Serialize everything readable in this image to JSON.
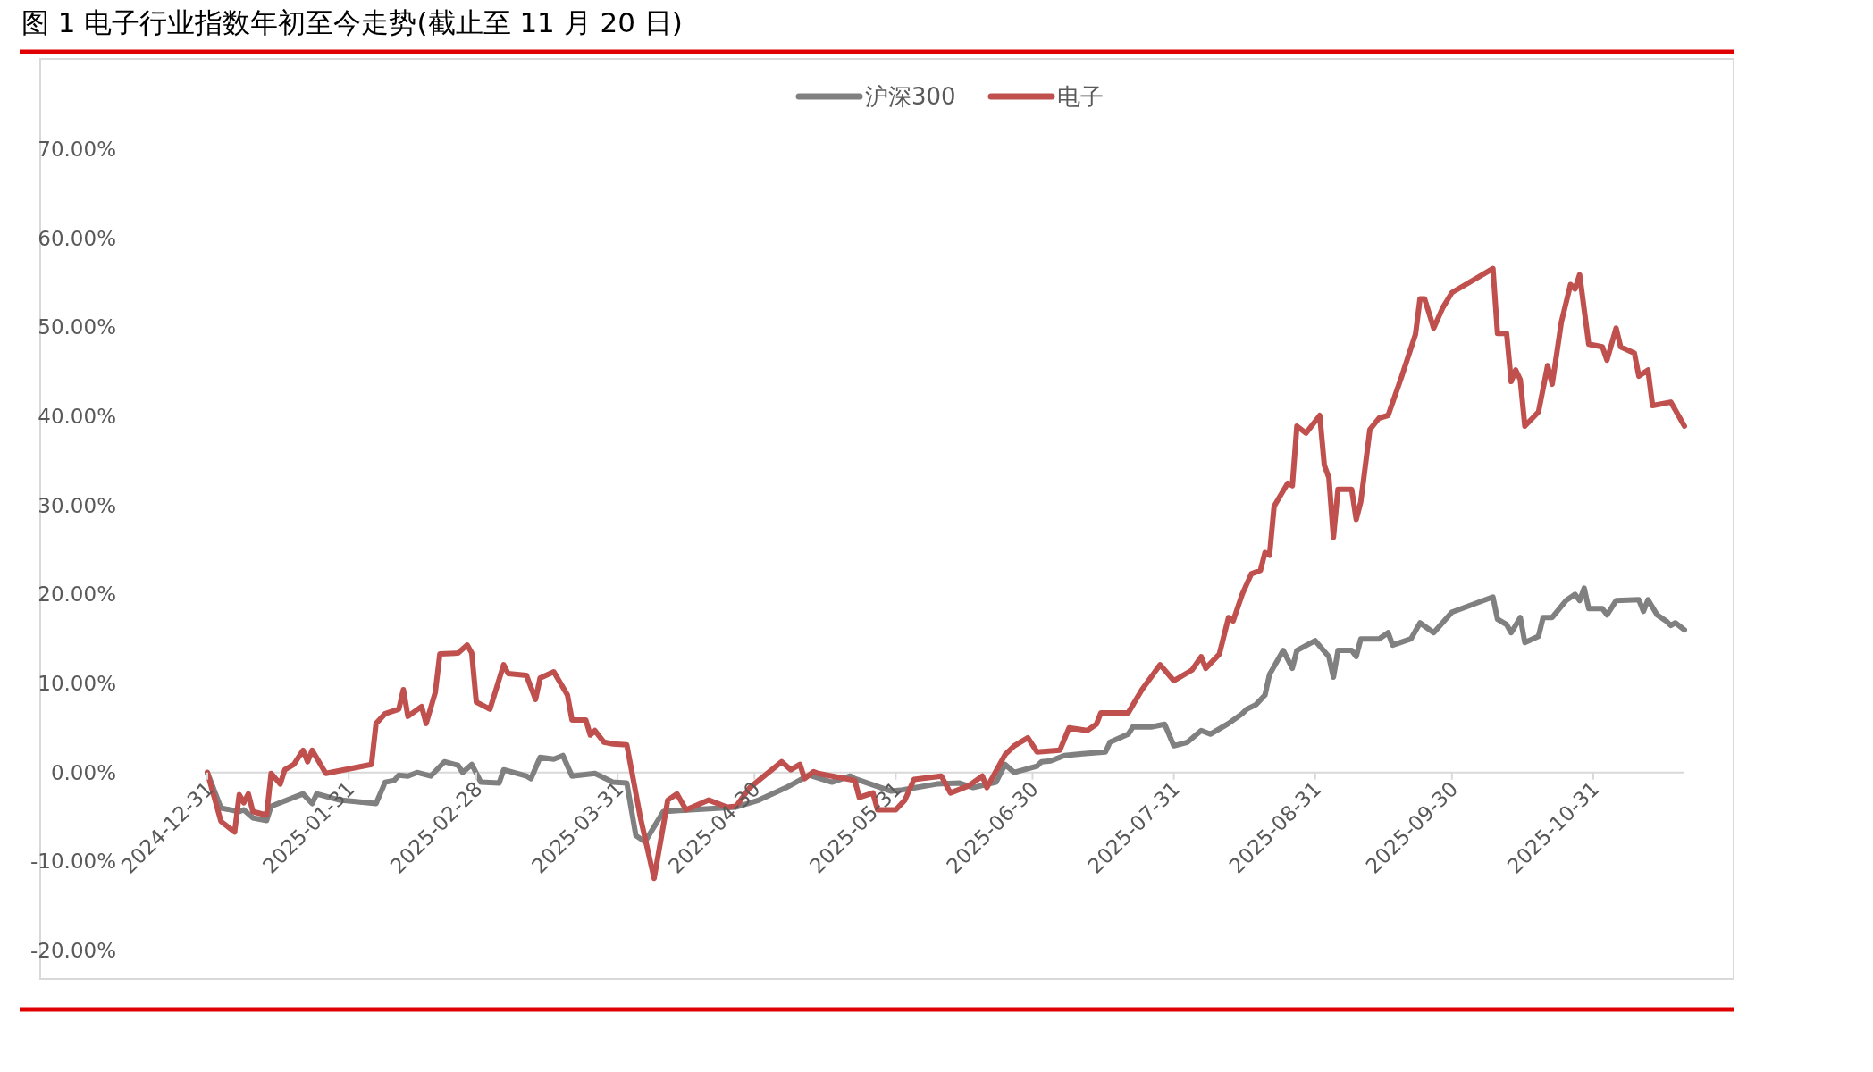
{
  "chart_data": {
    "type": "line",
    "title": "图 1 电子行业指数年初至今走势(截止至 11 月 20 日)",
    "legend": "top",
    "grid": false,
    "marker": "none",
    "line_style": "solid",
    "xlim": [
      "2024-12-31",
      "2025-11-20"
    ],
    "xticks": [
      "2024-12-31",
      "2025-01-31",
      "2025-02-28",
      "2025-03-31",
      "2025-04-30",
      "2025-05-31",
      "2025-06-30",
      "2025-07-31",
      "2025-08-31",
      "2025-09-30",
      "2025-10-31"
    ],
    "ylim": [
      -20,
      70
    ],
    "yticks": [
      {
        "value": -20,
        "label": "-20.00%"
      },
      {
        "value": -10,
        "label": "-10.00%"
      },
      {
        "value": 0,
        "label": "0.00%"
      },
      {
        "value": 10,
        "label": "10.00%"
      },
      {
        "value": 20,
        "label": "20.00%"
      },
      {
        "value": 30,
        "label": "30.00%"
      },
      {
        "value": 40,
        "label": "40.00%"
      },
      {
        "value": 50,
        "label": "50.00%"
      },
      {
        "value": 60,
        "label": "60.00%"
      },
      {
        "value": 70,
        "label": "70.00%"
      }
    ],
    "series": [
      {
        "name": "沪深300",
        "color": "#808080",
        "x": [
          "2024-12-31",
          "2025-01-03",
          "2025-01-07",
          "2025-01-08",
          "2025-01-10",
          "2025-01-13",
          "2025-01-14",
          "2025-01-21",
          "2025-01-23",
          "2025-01-24",
          "2025-01-29",
          "2025-02-06",
          "2025-02-08",
          "2025-02-10",
          "2025-02-11",
          "2025-02-13",
          "2025-02-15",
          "2025-02-18",
          "2025-02-21",
          "2025-02-24",
          "2025-02-25",
          "2025-02-27",
          "2025-03-01",
          "2025-03-05",
          "2025-03-06",
          "2025-03-11",
          "2025-03-12",
          "2025-03-14",
          "2025-03-17",
          "2025-03-19",
          "2025-03-21",
          "2025-03-26",
          "2025-03-30",
          "2025-04-02",
          "2025-04-04",
          "2025-04-06",
          "2025-04-10",
          "2025-04-16",
          "2025-04-26",
          "2025-05-01",
          "2025-05-07",
          "2025-05-12",
          "2025-05-17",
          "2025-05-21",
          "2025-05-22",
          "2025-05-30",
          "2025-06-01",
          "2025-06-09",
          "2025-06-14",
          "2025-06-17",
          "2025-06-22",
          "2025-06-24",
          "2025-06-26",
          "2025-07-01",
          "2025-07-02",
          "2025-07-04",
          "2025-07-07",
          "2025-07-11",
          "2025-07-16",
          "2025-07-17",
          "2025-07-21",
          "2025-07-22",
          "2025-07-26",
          "2025-07-29",
          "2025-07-31",
          "2025-08-03",
          "2025-08-06",
          "2025-08-08",
          "2025-08-12",
          "2025-08-15",
          "2025-08-16",
          "2025-08-18",
          "2025-08-20",
          "2025-08-21",
          "2025-08-24",
          "2025-08-26",
          "2025-08-27",
          "2025-08-31",
          "2025-09-03",
          "2025-09-04",
          "2025-09-05",
          "2025-09-08",
          "2025-09-09",
          "2025-09-10",
          "2025-09-14",
          "2025-09-16",
          "2025-09-17",
          "2025-09-21",
          "2025-09-23",
          "2025-09-26",
          "2025-09-30",
          "2025-10-09",
          "2025-10-10",
          "2025-10-12",
          "2025-10-13",
          "2025-10-15",
          "2025-10-16",
          "2025-10-19",
          "2025-10-20",
          "2025-10-22",
          "2025-10-25",
          "2025-10-27",
          "2025-10-28",
          "2025-10-29",
          "2025-10-30",
          "2025-11-02",
          "2025-11-03",
          "2025-11-05",
          "2025-11-10",
          "2025-11-11",
          "2025-11-12",
          "2025-11-14",
          "2025-11-16",
          "2025-11-17",
          "2025-11-18",
          "2025-11-20"
        ],
        "values": [
          0,
          -4.0,
          -4.4,
          -4.2,
          -5.1,
          -5.4,
          -3.8,
          -2.4,
          -3.5,
          -2.4,
          -3.1,
          -3.5,
          -1.1,
          -0.9,
          -0.3,
          -0.4,
          0,
          -0.4,
          1.2,
          0.8,
          0,
          0.9,
          -1.1,
          -1.2,
          0.3,
          -0.4,
          -0.7,
          1.7,
          1.5,
          1.9,
          -0.4,
          -0.1,
          -1.1,
          -1.2,
          -7.1,
          -7.8,
          -4.4,
          -4.2,
          -3.9,
          -3.1,
          -1.7,
          -0.3,
          -1.1,
          -0.4,
          -0.7,
          -2.1,
          -2.0,
          -1.3,
          -1.2,
          -1.7,
          -1.1,
          0.9,
          0,
          0.7,
          1.2,
          1.3,
          1.9,
          2.1,
          2.3,
          3.4,
          4.3,
          5.1,
          5.1,
          5.4,
          3.0,
          3.4,
          4.7,
          4.3,
          5.5,
          6.6,
          7.1,
          7.6,
          8.7,
          11.0,
          13.7,
          11.7,
          13.7,
          14.8,
          13.0,
          10.7,
          13.7,
          13.7,
          13.0,
          15.0,
          15.0,
          15.7,
          14.3,
          15.0,
          16.8,
          15.7,
          18.0,
          19.7,
          17.2,
          16.6,
          15.7,
          17.4,
          14.6,
          15.3,
          17.4,
          17.4,
          19.3,
          20.0,
          19.3,
          20.7,
          18.4,
          18.4,
          17.7,
          19.3,
          19.4,
          18.1,
          19.4,
          17.7,
          17.0,
          16.5,
          16.8,
          16.0
        ]
      },
      {
        "name": "电子",
        "color": "#c0504d",
        "x": [
          "2024-12-31",
          "2025-01-03",
          "2025-01-06",
          "2025-01-07",
          "2025-01-08",
          "2025-01-09",
          "2025-01-10",
          "2025-01-13",
          "2025-01-14",
          "2025-01-16",
          "2025-01-17",
          "2025-01-19",
          "2025-01-21",
          "2025-01-22",
          "2025-01-23",
          "2025-01-26",
          "2025-02-05",
          "2025-02-06",
          "2025-02-08",
          "2025-02-11",
          "2025-02-12",
          "2025-02-13",
          "2025-02-16",
          "2025-02-17",
          "2025-02-19",
          "2025-02-20",
          "2025-02-24",
          "2025-02-26",
          "2025-02-27",
          "2025-02-28",
          "2025-03-03",
          "2025-03-06",
          "2025-03-07",
          "2025-03-11",
          "2025-03-13",
          "2025-03-14",
          "2025-03-17",
          "2025-03-20",
          "2025-03-21",
          "2025-03-24",
          "2025-03-25",
          "2025-03-26",
          "2025-03-28",
          "2025-03-30",
          "2025-04-02",
          "2025-04-05",
          "2025-04-08",
          "2025-04-11",
          "2025-04-13",
          "2025-04-15",
          "2025-04-20",
          "2025-04-24",
          "2025-04-26",
          "2025-04-29",
          "2025-05-06",
          "2025-05-08",
          "2025-05-10",
          "2025-05-11",
          "2025-05-13",
          "2025-05-14",
          "2025-05-17",
          "2025-05-22",
          "2025-05-23",
          "2025-05-26",
          "2025-05-27",
          "2025-05-31",
          "2025-06-02",
          "2025-06-04",
          "2025-06-10",
          "2025-06-12",
          "2025-06-16",
          "2025-06-19",
          "2025-06-20",
          "2025-06-24",
          "2025-06-26",
          "2025-06-29",
          "2025-07-01",
          "2025-07-06",
          "2025-07-08",
          "2025-07-12",
          "2025-07-14",
          "2025-07-15",
          "2025-07-21",
          "2025-07-24",
          "2025-07-28",
          "2025-07-31",
          "2025-08-04",
          "2025-08-06",
          "2025-08-07",
          "2025-08-10",
          "2025-08-12",
          "2025-08-13",
          "2025-08-15",
          "2025-08-17",
          "2025-08-19",
          "2025-08-20",
          "2025-08-21",
          "2025-08-22",
          "2025-08-25",
          "2025-08-26",
          "2025-08-27",
          "2025-08-29",
          "2025-09-01",
          "2025-09-02",
          "2025-09-03",
          "2025-09-04",
          "2025-09-05",
          "2025-09-08",
          "2025-09-09",
          "2025-09-10",
          "2025-09-12",
          "2025-09-14",
          "2025-09-16",
          "2025-09-19",
          "2025-09-22",
          "2025-09-23",
          "2025-09-24",
          "2025-09-26",
          "2025-09-28",
          "2025-09-30",
          "2025-10-09",
          "2025-10-10",
          "2025-10-12",
          "2025-10-13",
          "2025-10-14",
          "2025-10-15",
          "2025-10-16",
          "2025-10-19",
          "2025-10-21",
          "2025-10-22",
          "2025-10-24",
          "2025-10-26",
          "2025-10-27",
          "2025-10-28",
          "2025-10-30",
          "2025-11-02",
          "2025-11-03",
          "2025-11-05",
          "2025-11-06",
          "2025-11-09",
          "2025-11-10",
          "2025-11-12",
          "2025-11-13",
          "2025-11-17",
          "2025-11-20"
        ],
        "values": [
          0,
          -5.5,
          -6.7,
          -2.5,
          -3.4,
          -2.4,
          -4.4,
          -4.8,
          -0.1,
          -1.3,
          0.3,
          0.9,
          2.5,
          1.2,
          2.5,
          -0.1,
          0.9,
          5.5,
          6.6,
          7.1,
          9.3,
          6.3,
          7.4,
          5.5,
          9.0,
          13.3,
          13.4,
          14.3,
          13.4,
          7.9,
          7.1,
          12.1,
          11.1,
          10.9,
          8.2,
          10.6,
          11.3,
          8.7,
          5.9,
          5.9,
          4.2,
          4.7,
          3.4,
          3.2,
          3.1,
          -5.1,
          -11.9,
          -3.1,
          -2.4,
          -4.2,
          -3.1,
          -3.9,
          -3.8,
          -1.7,
          1.2,
          0.3,
          0.9,
          -0.7,
          0.1,
          -0.1,
          -0.4,
          -0.9,
          -2.8,
          -2.3,
          -4.2,
          -4.2,
          -3.1,
          -0.8,
          -0.4,
          -2.3,
          -1.5,
          -0.4,
          -1.7,
          2.0,
          3.0,
          3.9,
          2.3,
          2.5,
          5.0,
          4.7,
          5.4,
          6.7,
          6.7,
          9.3,
          12.1,
          10.3,
          11.5,
          13.0,
          11.7,
          13.3,
          17.4,
          17.0,
          20.0,
          22.3,
          22.7,
          24.7,
          24.4,
          29.9,
          32.5,
          32.2,
          38.9,
          38.1,
          40.1,
          34.5,
          33.1,
          26.4,
          31.8,
          31.8,
          28.4,
          30.4,
          38.5,
          39.8,
          40.1,
          44.5,
          49.2,
          53.2,
          53.2,
          49.9,
          52.2,
          53.9,
          56.6,
          49.3,
          49.3,
          43.9,
          45.2,
          44.1,
          38.9,
          40.5,
          45.7,
          43.6,
          50.6,
          54.8,
          54.3,
          55.9,
          48.1,
          47.8,
          46.3,
          49.9,
          47.8,
          47.1,
          44.5,
          45.2,
          41.2,
          41.6,
          38.9
        ]
      }
    ]
  }
}
